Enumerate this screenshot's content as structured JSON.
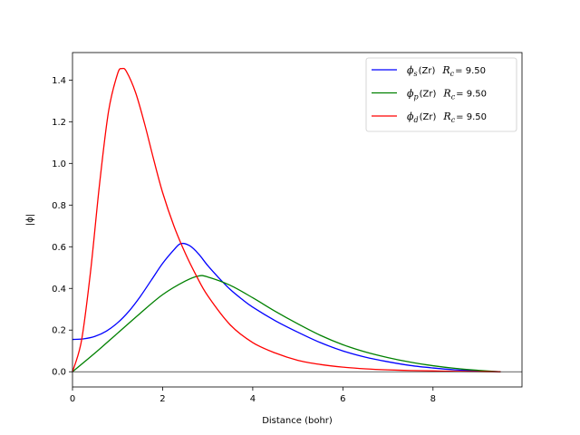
{
  "chart_data": {
    "type": "line",
    "xlabel": "Distance (bohr)",
    "ylabel": "|ϕ|",
    "xlim": [
      0,
      9.975
    ],
    "ylim": [
      -0.073,
      1.532
    ],
    "xticks": [
      0,
      2,
      4,
      6,
      8
    ],
    "yticks": [
      0.0,
      0.2,
      0.4,
      0.6,
      0.8,
      1.0,
      1.2,
      1.4
    ],
    "xtick_labels": [
      "0",
      "2",
      "4",
      "6",
      "8"
    ],
    "ytick_labels": [
      "0.0",
      "0.2",
      "0.4",
      "0.6",
      "0.8",
      "1.0",
      "1.2",
      "1.4"
    ],
    "grid": false,
    "legend_position": "top-right",
    "zero_line": true,
    "series": [
      {
        "name": "ϕs(Zr)  Rc = 9.50",
        "legend": {
          "symbol": "ϕ",
          "sub": "s",
          "element": "(Zr)",
          "rc_symbol": "R",
          "rc_sub": "c",
          "rc_value": "= 9.50"
        },
        "color": "#0000ff",
        "x": [
          0,
          0.25,
          0.5,
          0.75,
          1.0,
          1.25,
          1.5,
          1.75,
          2.0,
          2.25,
          2.4,
          2.6,
          2.8,
          3.0,
          3.25,
          3.5,
          3.75,
          4.0,
          4.5,
          5.0,
          5.5,
          6.0,
          6.5,
          7.0,
          7.5,
          8.0,
          8.5,
          9.0,
          9.5
        ],
        "y": [
          0.155,
          0.158,
          0.17,
          0.195,
          0.235,
          0.29,
          0.36,
          0.44,
          0.52,
          0.585,
          0.615,
          0.605,
          0.565,
          0.51,
          0.45,
          0.395,
          0.35,
          0.31,
          0.245,
          0.19,
          0.14,
          0.1,
          0.07,
          0.048,
          0.03,
          0.018,
          0.009,
          0.004,
          0.0
        ]
      },
      {
        "name": "ϕp(Zr)  Rc = 9.50",
        "legend": {
          "symbol": "ϕ",
          "sub": "p",
          "element": "(Zr)",
          "rc_symbol": "R",
          "rc_sub": "c",
          "rc_value": "= 9.50"
        },
        "color": "#008000",
        "x": [
          0,
          0.5,
          1.0,
          1.5,
          2.0,
          2.5,
          2.8,
          3.0,
          3.5,
          4.0,
          4.5,
          5.0,
          5.5,
          6.0,
          6.5,
          7.0,
          7.5,
          8.0,
          8.5,
          9.0,
          9.5
        ],
        "y": [
          0.0,
          0.09,
          0.185,
          0.28,
          0.37,
          0.435,
          0.46,
          0.455,
          0.415,
          0.355,
          0.29,
          0.23,
          0.175,
          0.13,
          0.095,
          0.068,
          0.046,
          0.029,
          0.016,
          0.007,
          0.0
        ]
      },
      {
        "name": "ϕd(Zr)  Rc = 9.50",
        "legend": {
          "symbol": "ϕ",
          "sub": "d",
          "element": "(Zr)",
          "rc_symbol": "R",
          "rc_sub": "c",
          "rc_value": "= 9.50"
        },
        "color": "#ff0000",
        "x": [
          0,
          0.2,
          0.4,
          0.6,
          0.8,
          1.0,
          1.1,
          1.2,
          1.4,
          1.6,
          1.8,
          2.0,
          2.25,
          2.5,
          2.75,
          3.0,
          3.5,
          4.0,
          4.5,
          5.0,
          5.5,
          6.0,
          6.5,
          7.0,
          7.5,
          8.0,
          8.5,
          9.0,
          9.5
        ],
        "y": [
          0.0,
          0.15,
          0.48,
          0.9,
          1.25,
          1.43,
          1.455,
          1.44,
          1.34,
          1.19,
          1.02,
          0.86,
          0.7,
          0.57,
          0.46,
          0.365,
          0.225,
          0.14,
          0.09,
          0.055,
          0.035,
          0.022,
          0.014,
          0.009,
          0.006,
          0.004,
          0.002,
          0.001,
          0.0
        ]
      }
    ]
  }
}
